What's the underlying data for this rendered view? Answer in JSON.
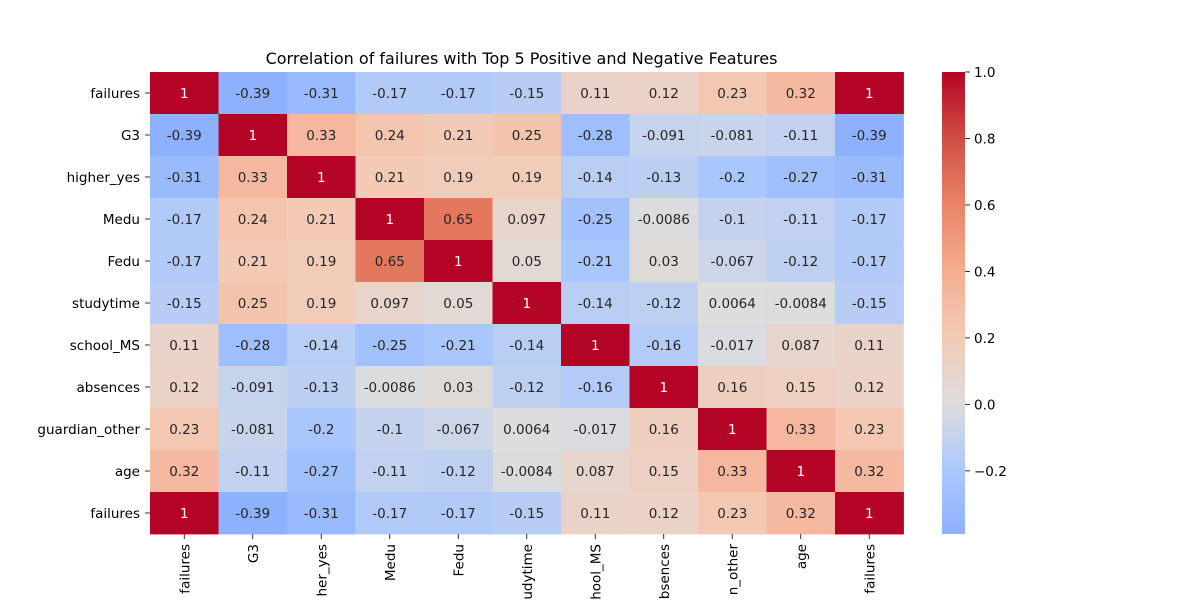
{
  "chart_data": {
    "type": "heatmap",
    "title": "Correlation of failures with Top 5 Positive and Negative Features",
    "rows": [
      "failures",
      "G3",
      "higher_yes",
      "Medu",
      "Fedu",
      "studytime",
      "school_MS",
      "absences",
      "guardian_other",
      "age",
      "failures"
    ],
    "columns": [
      "failures",
      "G3",
      "higher_yes",
      "Medu",
      "Fedu",
      "studytime",
      "school_MS",
      "absences",
      "guardian_other",
      "age",
      "failures"
    ],
    "column_tick_labels": [
      "failures",
      "G3",
      "her_yes",
      "Medu",
      "Fedu",
      "udytime",
      "hool_MS",
      "bsences",
      "n_other",
      "age",
      "failures"
    ],
    "values": [
      [
        1,
        -0.39,
        -0.31,
        -0.17,
        -0.17,
        -0.15,
        0.11,
        0.12,
        0.23,
        0.32,
        1
      ],
      [
        -0.39,
        1,
        0.33,
        0.24,
        0.21,
        0.25,
        -0.28,
        -0.091,
        -0.081,
        -0.11,
        -0.39
      ],
      [
        -0.31,
        0.33,
        1,
        0.21,
        0.19,
        0.19,
        -0.14,
        -0.13,
        -0.2,
        -0.27,
        -0.31
      ],
      [
        -0.17,
        0.24,
        0.21,
        1,
        0.65,
        0.097,
        -0.25,
        -0.0086,
        -0.1,
        -0.11,
        -0.17
      ],
      [
        -0.17,
        0.21,
        0.19,
        0.65,
        1,
        0.05,
        -0.21,
        0.03,
        -0.067,
        -0.12,
        -0.17
      ],
      [
        -0.15,
        0.25,
        0.19,
        0.097,
        0.05,
        1,
        -0.14,
        -0.12,
        0.0064,
        -0.0084,
        -0.15
      ],
      [
        0.11,
        -0.28,
        -0.14,
        -0.25,
        -0.21,
        -0.14,
        1,
        -0.16,
        -0.017,
        0.087,
        0.11
      ],
      [
        0.12,
        -0.091,
        -0.13,
        -0.0086,
        0.03,
        -0.12,
        -0.16,
        1,
        0.16,
        0.15,
        0.12
      ],
      [
        0.23,
        -0.081,
        -0.2,
        -0.1,
        -0.067,
        0.0064,
        -0.017,
        0.16,
        1,
        0.33,
        0.23
      ],
      [
        0.32,
        -0.11,
        -0.27,
        -0.11,
        -0.12,
        -0.0084,
        0.087,
        0.15,
        0.33,
        1,
        0.32
      ],
      [
        1,
        -0.39,
        -0.31,
        -0.17,
        -0.17,
        -0.15,
        0.11,
        0.12,
        0.23,
        0.32,
        1
      ]
    ],
    "cell_labels": [
      [
        "1",
        "-0.39",
        "-0.31",
        "-0.17",
        "-0.17",
        "-0.15",
        "0.11",
        "0.12",
        "0.23",
        "0.32",
        "1"
      ],
      [
        "-0.39",
        "1",
        "0.33",
        "0.24",
        "0.21",
        "0.25",
        "-0.28",
        "-0.091",
        "-0.081",
        "-0.11",
        "-0.39"
      ],
      [
        "-0.31",
        "0.33",
        "1",
        "0.21",
        "0.19",
        "0.19",
        "-0.14",
        "-0.13",
        "-0.2",
        "-0.27",
        "-0.31"
      ],
      [
        "-0.17",
        "0.24",
        "0.21",
        "1",
        "0.65",
        "0.097",
        "-0.25",
        "-0.0086",
        "-0.1",
        "-0.11",
        "-0.17"
      ],
      [
        "-0.17",
        "0.21",
        "0.19",
        "0.65",
        "1",
        "0.05",
        "-0.21",
        "0.03",
        "-0.067",
        "-0.12",
        "-0.17"
      ],
      [
        "-0.15",
        "0.25",
        "0.19",
        "0.097",
        "0.05",
        "1",
        "-0.14",
        "-0.12",
        "0.0064",
        "-0.0084",
        "-0.15"
      ],
      [
        "0.11",
        "-0.28",
        "-0.14",
        "-0.25",
        "-0.21",
        "-0.14",
        "1",
        "-0.16",
        "-0.017",
        "0.087",
        "0.11"
      ],
      [
        "0.12",
        "-0.091",
        "-0.13",
        "-0.0086",
        "0.03",
        "-0.12",
        "-0.16",
        "1",
        "0.16",
        "0.15",
        "0.12"
      ],
      [
        "0.23",
        "-0.081",
        "-0.2",
        "-0.1",
        "-0.067",
        "0.0064",
        "-0.017",
        "0.16",
        "1",
        "0.33",
        "0.23"
      ],
      [
        "0.32",
        "-0.11",
        "-0.27",
        "-0.11",
        "-0.12",
        "-0.0084",
        "0.087",
        "0.15",
        "0.33",
        "1",
        "0.32"
      ],
      [
        "1",
        "-0.39",
        "-0.31",
        "-0.17",
        "-0.17",
        "-0.15",
        "0.11",
        "0.12",
        "0.23",
        "0.32",
        "1"
      ]
    ],
    "colormap": "coolwarm",
    "center": 0,
    "color_range": [
      -0.39,
      1
    ],
    "colorbar_ticks": [
      1.0,
      0.8,
      0.6,
      0.4,
      0.2,
      0.0,
      -0.2
    ],
    "colorbar_tick_labels": [
      "1.0",
      "0.8",
      "0.6",
      "0.4",
      "0.2",
      "0.0",
      "−0.2"
    ],
    "annotation_colors": {
      "on_dark": "#ffffff",
      "on_light": "#262626"
    },
    "text_color": "#000000",
    "legend_position": "right",
    "grid": false
  }
}
